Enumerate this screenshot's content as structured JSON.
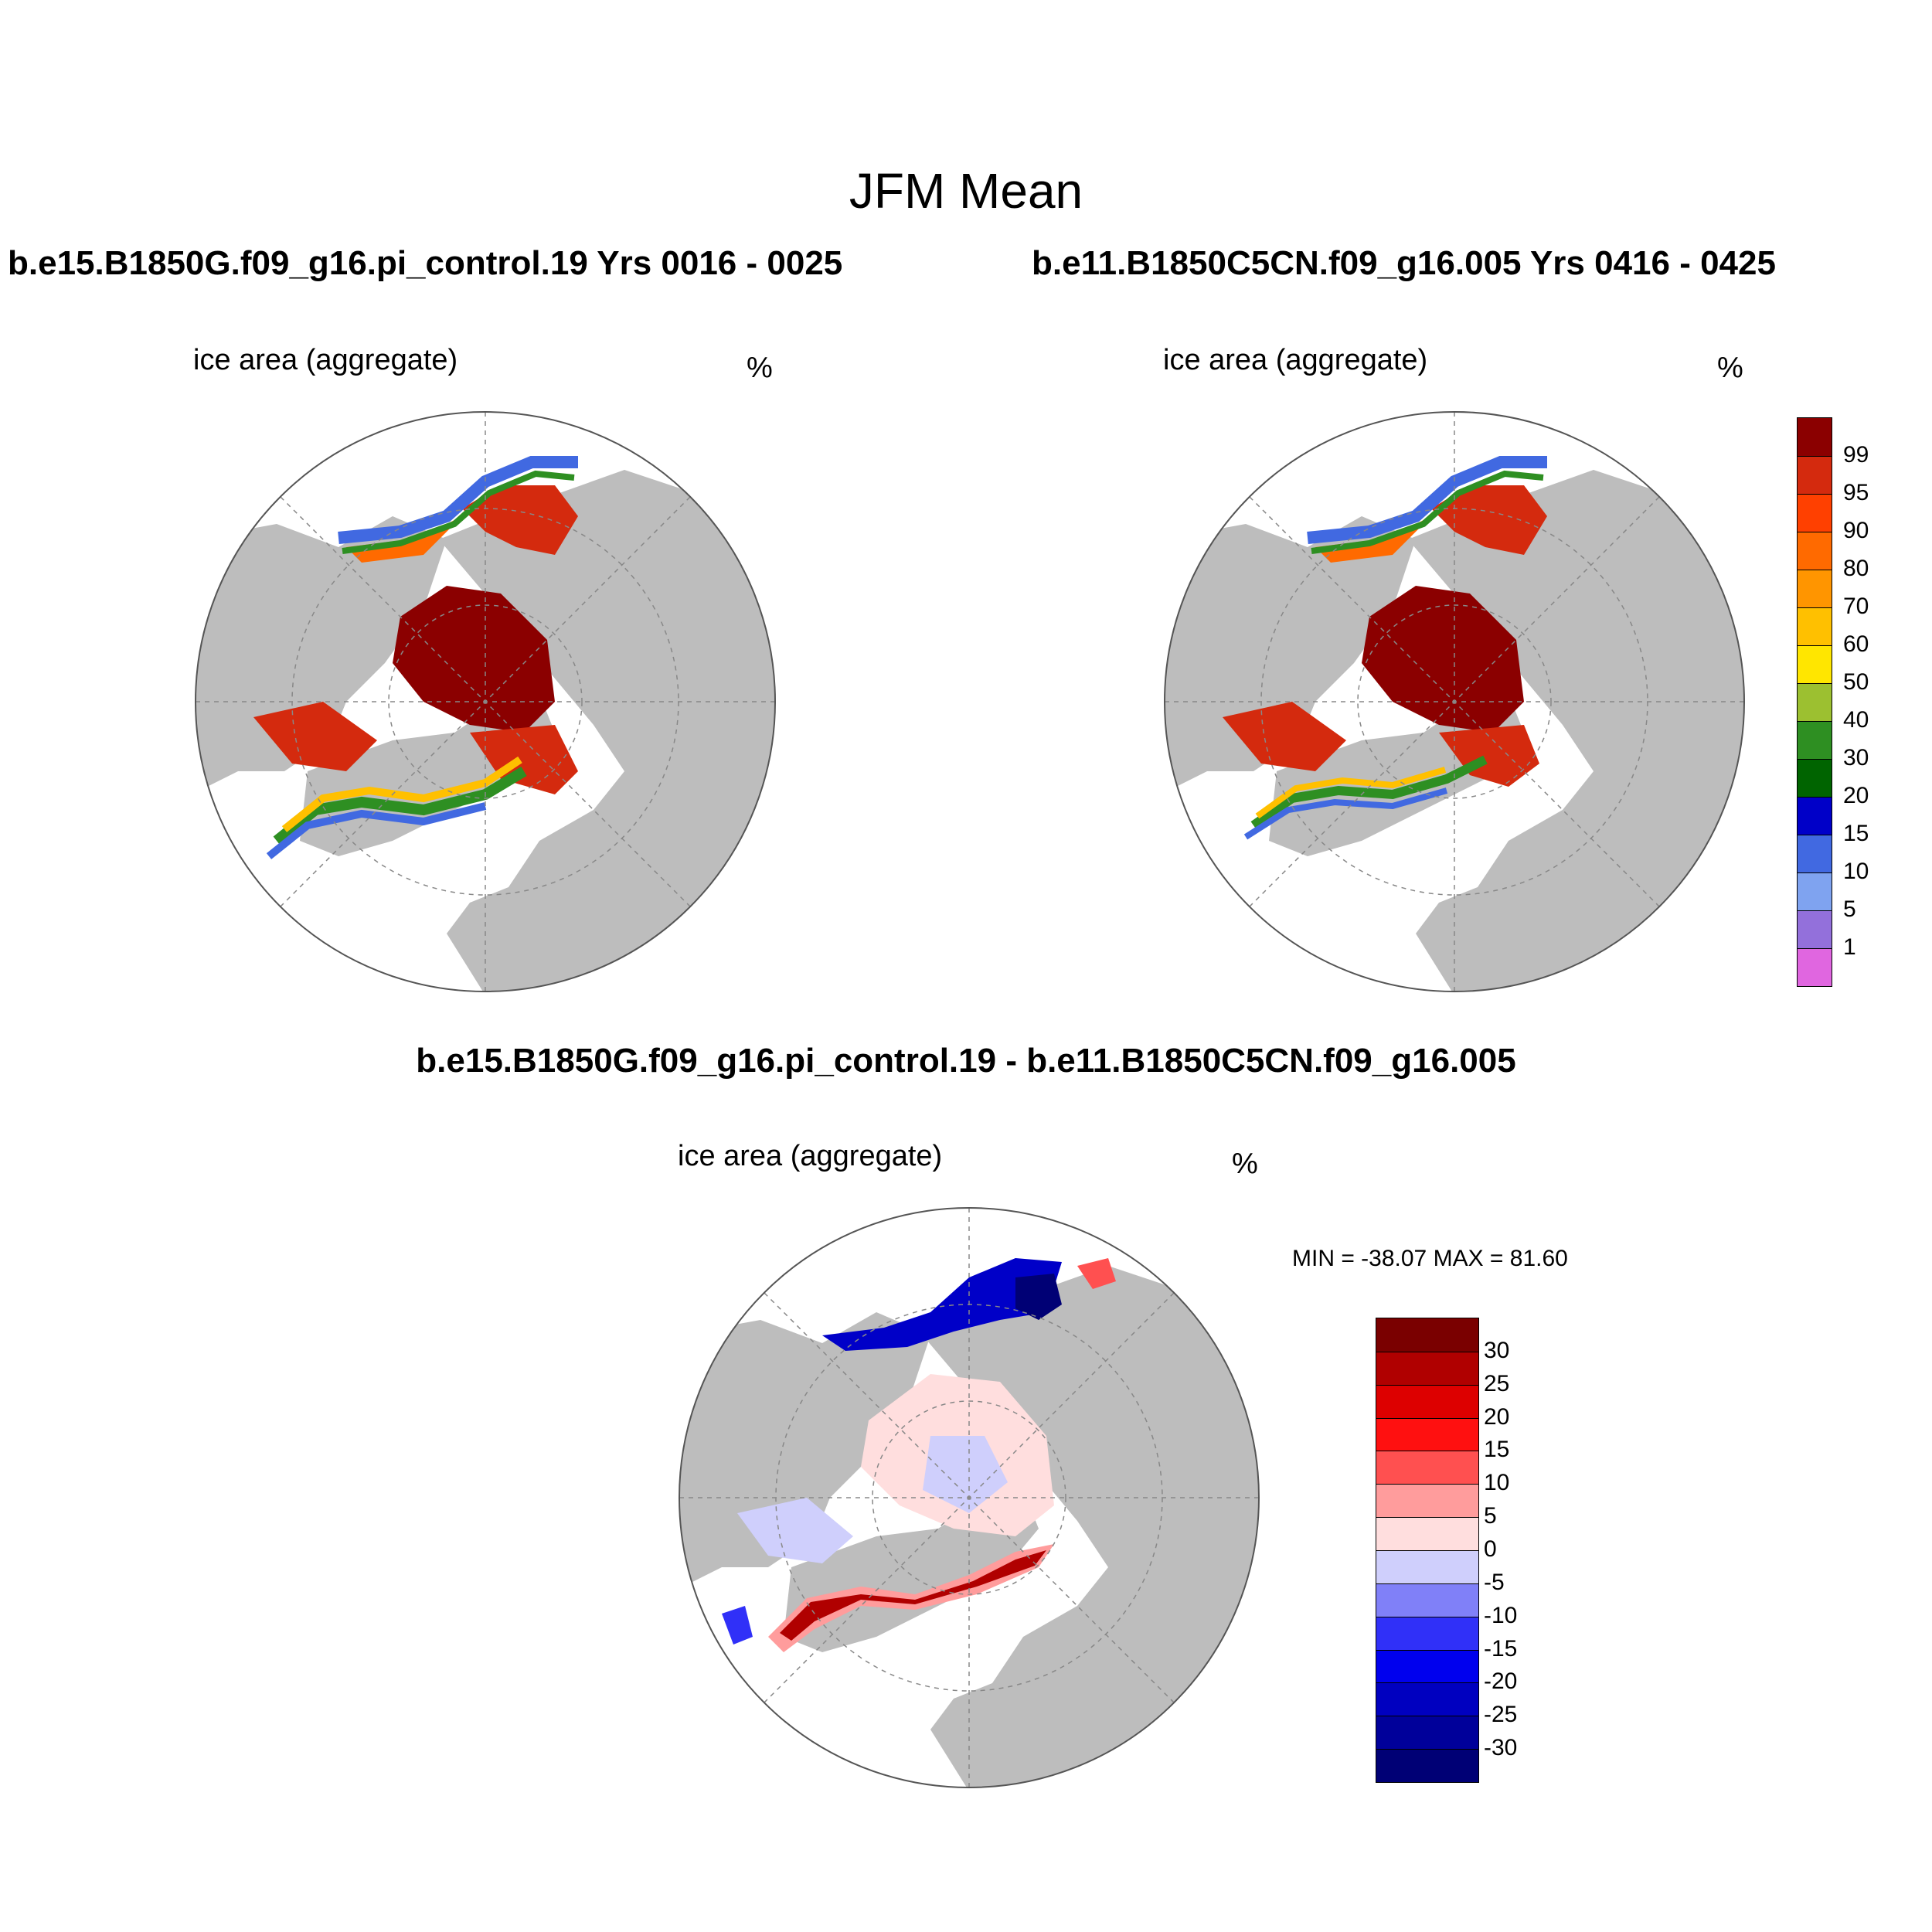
{
  "page": {
    "title": "JFM Mean",
    "case_left": "b.e15.B1850G.f09_g16.pi_control.19  Yrs 0016 - 0025",
    "case_right": "b.e11.B1850C5CN.f09_g16.005  Yrs 0416 - 0425",
    "diff_title": "b.e15.B1850G.f09_g16.pi_control.19 - b.e11.B1850C5CN.f09_g16.005"
  },
  "panels": {
    "left": {
      "variable": "ice area  (aggregate)",
      "unit": "%"
    },
    "right": {
      "variable": "ice area  (aggregate)",
      "unit": "%"
    },
    "diff": {
      "variable": "ice area  (aggregate)",
      "unit": "%",
      "minmax": "MIN = -38.07 MAX =  81.60"
    }
  },
  "colorbars": {
    "ice": {
      "labels": [
        "99",
        "95",
        "90",
        "80",
        "70",
        "60",
        "50",
        "40",
        "30",
        "20",
        "15",
        "10",
        "5",
        "1"
      ],
      "colors": [
        "#8b0000",
        "#d42a0e",
        "#ff4000",
        "#ff6a00",
        "#ff9500",
        "#ffc000",
        "#ffe600",
        "#9cc030",
        "#2e8f22",
        "#006400",
        "#0000c8",
        "#4169e1",
        "#7fa3f0",
        "#9370db",
        "#e066e0"
      ]
    },
    "diff": {
      "labels": [
        "30",
        "25",
        "20",
        "15",
        "10",
        "5",
        "0",
        "-5",
        "-10",
        "-15",
        "-20",
        "-25",
        "-30"
      ],
      "colors": [
        "#7a0000",
        "#b00000",
        "#dd0000",
        "#ff1010",
        "#ff5050",
        "#ff9c9c",
        "#ffdede",
        "#cfcffc",
        "#8080f8",
        "#3030f8",
        "#0000ee",
        "#0000c0",
        "#00009a",
        "#000075"
      ]
    }
  }
}
